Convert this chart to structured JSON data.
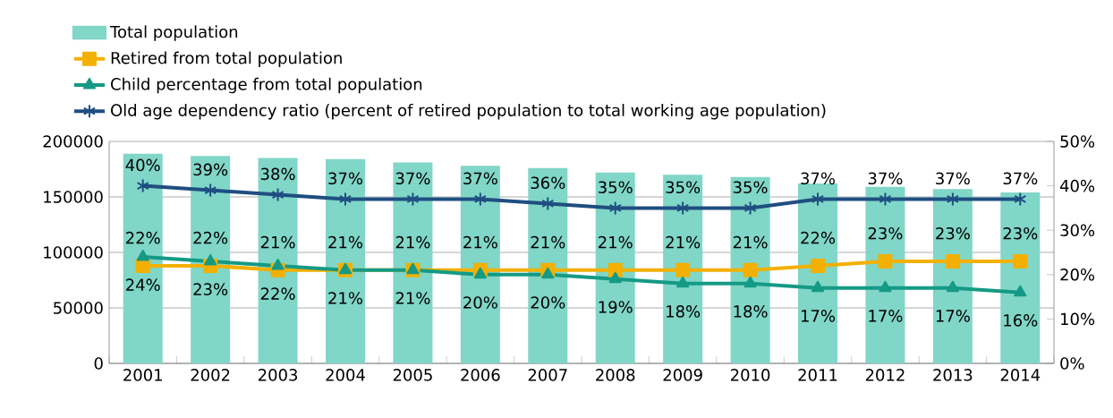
{
  "chart_data": {
    "type": "bar",
    "categories": [
      "2001",
      "2002",
      "2003",
      "2004",
      "2005",
      "2006",
      "2007",
      "2008",
      "2009",
      "2010",
      "2011",
      "2012",
      "2013",
      "2014"
    ],
    "series": [
      {
        "name": "Total population",
        "color": "#80d6c7",
        "values": [
          189000,
          187000,
          185000,
          184000,
          181000,
          178000,
          176000,
          172000,
          170000,
          168000,
          162000,
          159000,
          157000,
          154000
        ]
      },
      {
        "name": "Retired from total population",
        "type": "line",
        "axis": "y2",
        "marker": "square",
        "color": "#f3b000",
        "values": [
          22,
          22,
          21,
          21,
          21,
          21,
          21,
          21,
          21,
          21,
          22,
          23,
          23,
          23
        ],
        "value_labels": [
          "22%",
          "22%",
          "21%",
          "21%",
          "21%",
          "21%",
          "21%",
          "21%",
          "21%",
          "21%",
          "22%",
          "23%",
          "23%",
          "23%"
        ]
      },
      {
        "name": "Child percentage from total population",
        "type": "line",
        "axis": "y2",
        "marker": "triangle",
        "color": "#149a85",
        "values": [
          24,
          23,
          22,
          21,
          21,
          20,
          20,
          19,
          18,
          18,
          17,
          17,
          17,
          16
        ],
        "value_labels": [
          "24%",
          "23%",
          "22%",
          "21%",
          "21%",
          "20%",
          "20%",
          "19%",
          "18%",
          "18%",
          "17%",
          "17%",
          "17%",
          "16%"
        ]
      },
      {
        "name": "Old age dependency ratio (percent of retired population to total working age population)",
        "type": "line",
        "axis": "y2",
        "marker": "cross",
        "color": "#1f4e80",
        "values": [
          40,
          39,
          38,
          37,
          37,
          37,
          36,
          35,
          35,
          35,
          37,
          37,
          37,
          37
        ],
        "value_labels": [
          "40%",
          "39%",
          "38%",
          "37%",
          "37%",
          "37%",
          "36%",
          "35%",
          "35%",
          "35%",
          "37%",
          "37%",
          "37%",
          "37%"
        ]
      }
    ],
    "ylim": [
      0,
      200000
    ],
    "yticks": [
      0,
      50000,
      100000,
      150000,
      200000
    ],
    "y2lim": [
      0,
      50
    ],
    "y2ticks": [
      {
        "value": 0,
        "label": "0%"
      },
      {
        "value": 10,
        "label": "10%"
      },
      {
        "value": 20,
        "label": "20%"
      },
      {
        "value": 30,
        "label": "30%"
      },
      {
        "value": 40,
        "label": "40%"
      },
      {
        "value": 50,
        "label": "50%"
      }
    ],
    "grid": "y",
    "legend": "top left",
    "line_style": "solid"
  }
}
